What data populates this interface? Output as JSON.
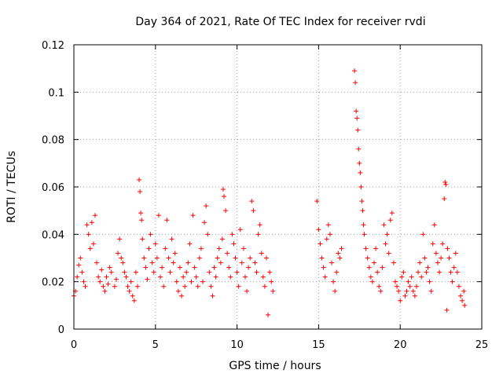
{
  "chart_data": {
    "type": "scatter",
    "title": "Day 364 of 2021, Rate Of TEC Index for receiver rvdi",
    "xlabel": "GPS time / hours",
    "ylabel": "ROTI / TECUs",
    "xlim": [
      0,
      25
    ],
    "ylim": [
      0,
      0.12
    ],
    "grid": true,
    "marker": "+",
    "colors": {
      "marker": "#ff0000",
      "grid": "#a0a0a0",
      "frame": "#000000"
    },
    "x_ticks": [
      {
        "value": 0,
        "label": "0"
      },
      {
        "value": 5,
        "label": "5"
      },
      {
        "value": 10,
        "label": "10"
      },
      {
        "value": 15,
        "label": "15"
      },
      {
        "value": 20,
        "label": "20"
      },
      {
        "value": 25,
        "label": "25"
      }
    ],
    "y_ticks": [
      {
        "value": 0,
        "label": "0"
      },
      {
        "value": 0.02,
        "label": "0.02"
      },
      {
        "value": 0.04,
        "label": "0.04"
      },
      {
        "value": 0.06,
        "label": "0.06"
      },
      {
        "value": 0.08,
        "label": "0.08"
      },
      {
        "value": 0.1,
        "label": "0.1"
      },
      {
        "value": 0.12,
        "label": "0.12"
      }
    ],
    "series": [
      {
        "name": "ROTI",
        "points": [
          [
            0.0,
            0.014
          ],
          [
            0.1,
            0.016
          ],
          [
            0.2,
            0.022
          ],
          [
            0.3,
            0.027
          ],
          [
            0.4,
            0.03
          ],
          [
            0.5,
            0.024
          ],
          [
            0.6,
            0.02
          ],
          [
            0.7,
            0.018
          ],
          [
            0.8,
            0.044
          ],
          [
            0.9,
            0.04
          ],
          [
            1.0,
            0.034
          ],
          [
            1.1,
            0.045
          ],
          [
            1.2,
            0.036
          ],
          [
            1.3,
            0.048
          ],
          [
            1.4,
            0.028
          ],
          [
            1.5,
            0.022
          ],
          [
            1.6,
            0.02
          ],
          [
            1.7,
            0.025
          ],
          [
            1.8,
            0.018
          ],
          [
            1.9,
            0.016
          ],
          [
            2.0,
            0.022
          ],
          [
            2.1,
            0.019
          ],
          [
            2.2,
            0.026
          ],
          [
            2.3,
            0.024
          ],
          [
            2.5,
            0.018
          ],
          [
            2.6,
            0.021
          ],
          [
            2.7,
            0.032
          ],
          [
            2.8,
            0.038
          ],
          [
            2.9,
            0.03
          ],
          [
            3.0,
            0.028
          ],
          [
            3.1,
            0.024
          ],
          [
            3.2,
            0.022
          ],
          [
            3.3,
            0.018
          ],
          [
            3.4,
            0.016
          ],
          [
            3.5,
            0.02
          ],
          [
            3.6,
            0.014
          ],
          [
            3.7,
            0.012
          ],
          [
            3.8,
            0.024
          ],
          [
            3.9,
            0.018
          ],
          [
            4.0,
            0.063
          ],
          [
            4.05,
            0.058
          ],
          [
            4.1,
            0.049
          ],
          [
            4.15,
            0.046
          ],
          [
            4.2,
            0.038
          ],
          [
            4.3,
            0.03
          ],
          [
            4.4,
            0.026
          ],
          [
            4.5,
            0.021
          ],
          [
            4.6,
            0.034
          ],
          [
            4.7,
            0.04
          ],
          [
            4.8,
            0.028
          ],
          [
            4.9,
            0.024
          ],
          [
            5.0,
            0.036
          ],
          [
            5.1,
            0.03
          ],
          [
            5.2,
            0.048
          ],
          [
            5.3,
            0.022
          ],
          [
            5.4,
            0.026
          ],
          [
            5.5,
            0.018
          ],
          [
            5.6,
            0.034
          ],
          [
            5.7,
            0.046
          ],
          [
            5.8,
            0.03
          ],
          [
            5.9,
            0.024
          ],
          [
            6.0,
            0.038
          ],
          [
            6.1,
            0.028
          ],
          [
            6.2,
            0.032
          ],
          [
            6.3,
            0.02
          ],
          [
            6.4,
            0.016
          ],
          [
            6.5,
            0.026
          ],
          [
            6.6,
            0.014
          ],
          [
            6.7,
            0.022
          ],
          [
            6.8,
            0.018
          ],
          [
            6.9,
            0.024
          ],
          [
            7.0,
            0.028
          ],
          [
            7.1,
            0.036
          ],
          [
            7.2,
            0.02
          ],
          [
            7.3,
            0.048
          ],
          [
            7.4,
            0.026
          ],
          [
            7.5,
            0.022
          ],
          [
            7.6,
            0.018
          ],
          [
            7.7,
            0.03
          ],
          [
            7.8,
            0.034
          ],
          [
            7.9,
            0.02
          ],
          [
            8.0,
            0.045
          ],
          [
            8.1,
            0.052
          ],
          [
            8.2,
            0.04
          ],
          [
            8.3,
            0.024
          ],
          [
            8.4,
            0.018
          ],
          [
            8.5,
            0.014
          ],
          [
            8.6,
            0.026
          ],
          [
            8.7,
            0.022
          ],
          [
            8.8,
            0.03
          ],
          [
            8.9,
            0.034
          ],
          [
            9.0,
            0.028
          ],
          [
            9.1,
            0.038
          ],
          [
            9.15,
            0.059
          ],
          [
            9.2,
            0.056
          ],
          [
            9.3,
            0.05
          ],
          [
            9.4,
            0.032
          ],
          [
            9.5,
            0.026
          ],
          [
            9.6,
            0.022
          ],
          [
            9.7,
            0.04
          ],
          [
            9.8,
            0.036
          ],
          [
            9.9,
            0.03
          ],
          [
            10.0,
            0.024
          ],
          [
            10.1,
            0.018
          ],
          [
            10.2,
            0.042
          ],
          [
            10.3,
            0.028
          ],
          [
            10.4,
            0.034
          ],
          [
            10.5,
            0.022
          ],
          [
            10.6,
            0.016
          ],
          [
            10.7,
            0.026
          ],
          [
            10.8,
            0.03
          ],
          [
            10.9,
            0.054
          ],
          [
            11.0,
            0.05
          ],
          [
            11.1,
            0.028
          ],
          [
            11.2,
            0.024
          ],
          [
            11.3,
            0.04
          ],
          [
            11.4,
            0.044
          ],
          [
            11.5,
            0.032
          ],
          [
            11.6,
            0.022
          ],
          [
            11.7,
            0.018
          ],
          [
            11.8,
            0.03
          ],
          [
            11.9,
            0.006
          ],
          [
            12.0,
            0.024
          ],
          [
            12.1,
            0.02
          ],
          [
            12.2,
            0.016
          ],
          [
            14.9,
            0.054
          ],
          [
            15.0,
            0.042
          ],
          [
            15.1,
            0.036
          ],
          [
            15.2,
            0.03
          ],
          [
            15.3,
            0.026
          ],
          [
            15.4,
            0.022
          ],
          [
            15.5,
            0.038
          ],
          [
            15.6,
            0.044
          ],
          [
            15.7,
            0.04
          ],
          [
            15.8,
            0.028
          ],
          [
            15.9,
            0.02
          ],
          [
            16.0,
            0.016
          ],
          [
            16.1,
            0.024
          ],
          [
            16.2,
            0.032
          ],
          [
            16.3,
            0.03
          ],
          [
            16.4,
            0.034
          ],
          [
            17.2,
            0.109
          ],
          [
            17.25,
            0.104
          ],
          [
            17.3,
            0.092
          ],
          [
            17.35,
            0.089
          ],
          [
            17.4,
            0.084
          ],
          [
            17.45,
            0.076
          ],
          [
            17.5,
            0.07
          ],
          [
            17.55,
            0.066
          ],
          [
            17.6,
            0.06
          ],
          [
            17.65,
            0.054
          ],
          [
            17.7,
            0.05
          ],
          [
            17.75,
            0.044
          ],
          [
            17.8,
            0.04
          ],
          [
            17.9,
            0.034
          ],
          [
            18.0,
            0.03
          ],
          [
            18.1,
            0.026
          ],
          [
            18.2,
            0.022
          ],
          [
            18.3,
            0.02
          ],
          [
            18.4,
            0.028
          ],
          [
            18.5,
            0.034
          ],
          [
            18.6,
            0.024
          ],
          [
            18.7,
            0.018
          ],
          [
            18.8,
            0.016
          ],
          [
            18.9,
            0.026
          ],
          [
            19.0,
            0.044
          ],
          [
            19.1,
            0.036
          ],
          [
            19.2,
            0.04
          ],
          [
            19.3,
            0.032
          ],
          [
            19.4,
            0.046
          ],
          [
            19.5,
            0.049
          ],
          [
            19.6,
            0.028
          ],
          [
            19.7,
            0.02
          ],
          [
            19.8,
            0.018
          ],
          [
            19.9,
            0.016
          ],
          [
            20.0,
            0.012
          ],
          [
            20.1,
            0.022
          ],
          [
            20.2,
            0.024
          ],
          [
            20.3,
            0.014
          ],
          [
            20.4,
            0.016
          ],
          [
            20.5,
            0.02
          ],
          [
            20.6,
            0.018
          ],
          [
            20.7,
            0.022
          ],
          [
            20.8,
            0.016
          ],
          [
            20.9,
            0.014
          ],
          [
            21.0,
            0.018
          ],
          [
            21.1,
            0.024
          ],
          [
            21.2,
            0.028
          ],
          [
            21.3,
            0.022
          ],
          [
            21.4,
            0.04
          ],
          [
            21.5,
            0.03
          ],
          [
            21.6,
            0.024
          ],
          [
            21.7,
            0.026
          ],
          [
            21.8,
            0.02
          ],
          [
            21.9,
            0.016
          ],
          [
            22.0,
            0.036
          ],
          [
            22.1,
            0.044
          ],
          [
            22.2,
            0.032
          ],
          [
            22.3,
            0.028
          ],
          [
            22.4,
            0.024
          ],
          [
            22.5,
            0.03
          ],
          [
            22.6,
            0.036
          ],
          [
            22.7,
            0.055
          ],
          [
            22.75,
            0.062
          ],
          [
            22.8,
            0.061
          ],
          [
            22.85,
            0.008
          ],
          [
            22.9,
            0.034
          ],
          [
            23.0,
            0.03
          ],
          [
            23.1,
            0.024
          ],
          [
            23.2,
            0.02
          ],
          [
            23.3,
            0.026
          ],
          [
            23.4,
            0.032
          ],
          [
            23.5,
            0.024
          ],
          [
            23.6,
            0.018
          ],
          [
            23.7,
            0.014
          ],
          [
            23.8,
            0.012
          ],
          [
            23.9,
            0.016
          ],
          [
            23.95,
            0.01
          ]
        ]
      }
    ]
  }
}
